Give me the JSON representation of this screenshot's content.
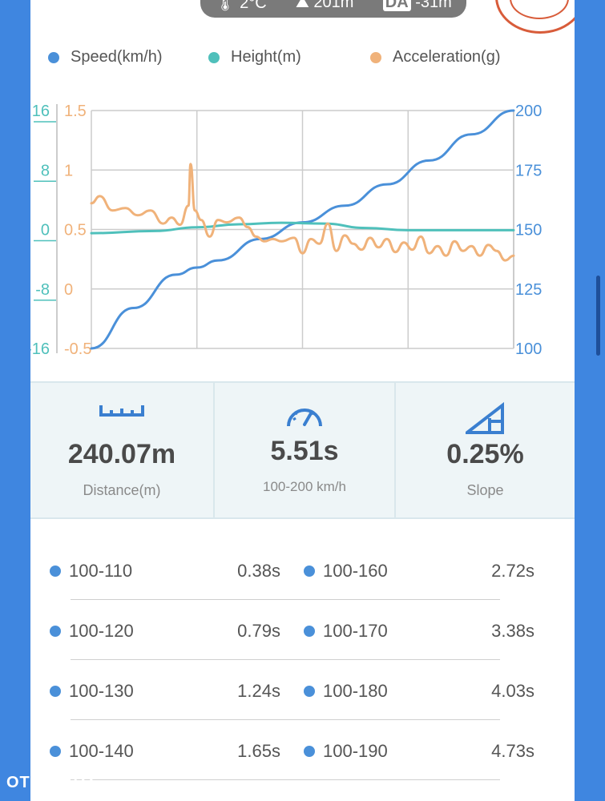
{
  "header": {
    "temperature": "2°C",
    "altitude": "201m",
    "da_label": "DA",
    "density_altitude": "-31m"
  },
  "legend": {
    "speed": "Speed(km/h)",
    "height": "Height(m)",
    "acceleration": "Acceleration(g)"
  },
  "colors": {
    "speed": "#4a90d9",
    "height": "#4fc0bb",
    "acceleration": "#f0b27a",
    "background": "#3f86e0"
  },
  "chart_data": {
    "type": "line",
    "axes": {
      "left_height_ticks": [
        "16",
        "8",
        "0",
        "-8",
        "-16"
      ],
      "left_accel_ticks": [
        "1.5",
        "1",
        "0.5",
        "0",
        "-0.5"
      ],
      "right_speed_ticks": [
        "200",
        "175",
        "150",
        "125",
        "100"
      ],
      "height_range": [
        -16,
        16
      ],
      "accel_range": [
        -0.5,
        1.5
      ],
      "speed_range": [
        100,
        200
      ]
    },
    "grid": true,
    "series": [
      {
        "name": "Speed(km/h)",
        "axis": "speed",
        "x": [
          0,
          0.1,
          0.2,
          0.25,
          0.3,
          0.4,
          0.5,
          0.6,
          0.7,
          0.8,
          0.9,
          1.0
        ],
        "y": [
          100,
          117,
          131,
          134,
          137,
          146,
          153,
          160,
          169,
          179,
          190,
          200
        ]
      },
      {
        "name": "Height(m)",
        "axis": "height",
        "x": [
          0,
          0.15,
          0.25,
          0.35,
          0.45,
          0.55,
          0.65,
          0.75,
          0.85,
          1.0
        ],
        "y": [
          -0.5,
          -0.2,
          0.3,
          0.7,
          0.9,
          0.8,
          0.2,
          -0.1,
          -0.1,
          -0.1
        ],
        "smooth": true
      },
      {
        "name": "Acceleration(g)",
        "axis": "acceleration",
        "x": [
          0,
          0.02,
          0.05,
          0.08,
          0.11,
          0.14,
          0.17,
          0.19,
          0.21,
          0.23,
          0.235,
          0.245,
          0.26,
          0.28,
          0.3,
          0.32,
          0.35,
          0.37,
          0.39,
          0.41,
          0.43,
          0.45,
          0.48,
          0.5,
          0.52,
          0.54,
          0.56,
          0.58,
          0.6,
          0.62,
          0.64,
          0.66,
          0.68,
          0.7,
          0.72,
          0.74,
          0.76,
          0.78,
          0.8,
          0.82,
          0.84,
          0.86,
          0.88,
          0.9,
          0.92,
          0.94,
          0.96,
          0.98,
          1.0
        ],
        "y": [
          0.72,
          0.78,
          0.66,
          0.68,
          0.62,
          0.66,
          0.55,
          0.6,
          0.54,
          0.7,
          1.05,
          0.66,
          0.58,
          0.44,
          0.58,
          0.56,
          0.6,
          0.52,
          0.44,
          0.4,
          0.42,
          0.4,
          0.43,
          0.3,
          0.42,
          0.38,
          0.55,
          0.32,
          0.45,
          0.38,
          0.33,
          0.43,
          0.35,
          0.42,
          0.31,
          0.39,
          0.33,
          0.44,
          0.3,
          0.36,
          0.28,
          0.4,
          0.32,
          0.36,
          0.28,
          0.37,
          0.32,
          0.24,
          0.28
        ]
      }
    ]
  },
  "stats": {
    "distance_value": "240.07m",
    "distance_label": "Distance(m)",
    "time_value": "5.51s",
    "time_label": "100-200 km/h",
    "slope_value": "0.25%",
    "slope_label": "Slope"
  },
  "splits": [
    {
      "left_range": "100-110",
      "left_time": "0.38s",
      "right_range": "100-160",
      "right_time": "2.72s"
    },
    {
      "left_range": "100-120",
      "left_time": "0.79s",
      "right_range": "100-170",
      "right_time": "3.38s"
    },
    {
      "left_range": "100-130",
      "left_time": "1.24s",
      "right_range": "100-180",
      "right_time": "4.03s"
    },
    {
      "left_range": "100-140",
      "left_time": "1.65s",
      "right_range": "100-190",
      "right_time": "4.73s"
    }
  ],
  "watermark": "OTOMOTO"
}
